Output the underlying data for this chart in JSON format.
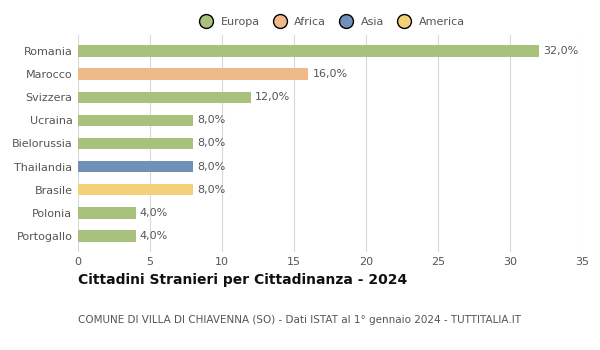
{
  "categories": [
    "Romania",
    "Marocco",
    "Svizzera",
    "Ucraina",
    "Bielorussia",
    "Thailandia",
    "Brasile",
    "Polonia",
    "Portogallo"
  ],
  "values": [
    32.0,
    16.0,
    12.0,
    8.0,
    8.0,
    8.0,
    8.0,
    4.0,
    4.0
  ],
  "colors": [
    "#a8c17c",
    "#f0b98a",
    "#a8c17c",
    "#a8c17c",
    "#a8c17c",
    "#7090b8",
    "#f5d07a",
    "#a8c17c",
    "#a8c17c"
  ],
  "legend_labels": [
    "Europa",
    "Africa",
    "Asia",
    "America"
  ],
  "legend_colors": [
    "#a8c17c",
    "#f0b98a",
    "#7090b8",
    "#f5d07a"
  ],
  "title": "Cittadini Stranieri per Cittadinanza - 2024",
  "subtitle": "COMUNE DI VILLA DI CHIAVENNA (SO) - Dati ISTAT al 1° gennaio 2024 - TUTTITALIA.IT",
  "xlim": [
    0,
    35
  ],
  "xticks": [
    0,
    5,
    10,
    15,
    20,
    25,
    30,
    35
  ],
  "background_color": "#ffffff",
  "grid_color": "#d8d8d8",
  "bar_height": 0.5,
  "label_fontsize": 8,
  "tick_fontsize": 8,
  "title_fontsize": 10,
  "subtitle_fontsize": 7.5,
  "text_color": "#555555"
}
